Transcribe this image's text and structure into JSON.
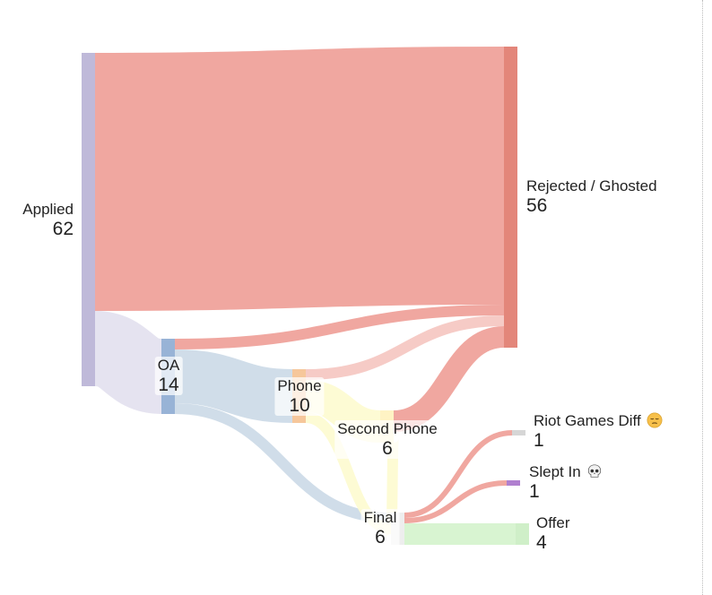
{
  "chart_data": {
    "type": "sankey",
    "nodes": [
      {
        "id": "applied",
        "label": "Applied",
        "value": "62",
        "color": "#bfb9d9"
      },
      {
        "id": "oa",
        "label": "OA",
        "value": "14",
        "color": "#98b3d6"
      },
      {
        "id": "phone",
        "label": "Phone",
        "value": "10",
        "color": "#f6c79b"
      },
      {
        "id": "second",
        "label": "Second Phone",
        "value": "6",
        "color": "#fff3c4"
      },
      {
        "id": "final",
        "label": "Final",
        "value": "6",
        "color": "#eeeeee"
      },
      {
        "id": "rejected",
        "label": "Rejected / Ghosted",
        "value": "56",
        "color": "#e3867a"
      },
      {
        "id": "riot",
        "label": "Riot Games Diff",
        "value": "1",
        "color": "#d6d6d6",
        "icon": "pensive-face-emoji"
      },
      {
        "id": "slept",
        "label": "Slept In",
        "value": "1",
        "color": "#b07fcf",
        "icon": "skull-emoji"
      },
      {
        "id": "offer",
        "label": "Offer",
        "value": "4",
        "color": "#cfefc8"
      }
    ],
    "links": [
      {
        "source": "applied",
        "target": "rejected",
        "value": 48,
        "color": "#efa29b"
      },
      {
        "source": "applied",
        "target": "oa",
        "value": 14,
        "color": "#e4e2ef"
      },
      {
        "source": "oa",
        "target": "rejected",
        "value": 2,
        "color": "#efa29b"
      },
      {
        "source": "oa",
        "target": "phone",
        "value": 10,
        "color": "#cddbe8"
      },
      {
        "source": "oa",
        "target": "final",
        "value": 2,
        "color": "#cddbe8"
      },
      {
        "source": "phone",
        "target": "rejected",
        "value": 2,
        "color": "#f5c8c3"
      },
      {
        "source": "phone",
        "target": "second",
        "value": 6,
        "color": "#fdfbd2"
      },
      {
        "source": "phone",
        "target": "final",
        "value": 2,
        "color": "#fdfbd2"
      },
      {
        "source": "second",
        "target": "rejected",
        "value": 4,
        "color": "#efa29b"
      },
      {
        "source": "second",
        "target": "final",
        "value": 2,
        "color": "#fdfbd2"
      },
      {
        "source": "final",
        "target": "riot",
        "value": 1,
        "color": "#efa29b"
      },
      {
        "source": "final",
        "target": "slept",
        "value": 1,
        "color": "#efa29b"
      },
      {
        "source": "final",
        "target": "offer",
        "value": 4,
        "color": "#d6f3cf"
      }
    ]
  }
}
